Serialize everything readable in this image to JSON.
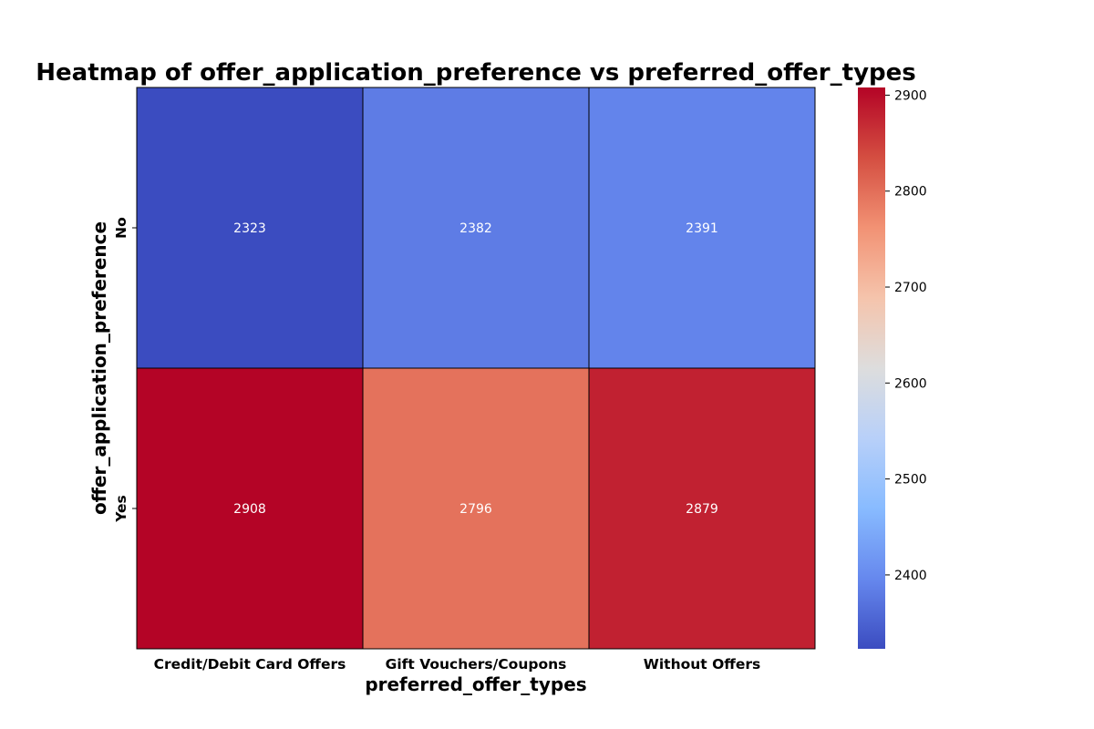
{
  "chart_data": {
    "type": "heatmap",
    "title": "Heatmap of offer_application_preference vs preferred_offer_types",
    "xlabel": "preferred_offer_types",
    "ylabel": "offer_application_preference",
    "x_categories": [
      "Credit/Debit Card Offers",
      "Gift Vouchers/Coupons",
      "Without Offers"
    ],
    "y_categories": [
      "No",
      "Yes"
    ],
    "values": [
      [
        2323,
        2382,
        2391
      ],
      [
        2908,
        2796,
        2879
      ]
    ],
    "colormap": "coolwarm",
    "colormap_stops": [
      "#3b4cc0",
      "#6688ee",
      "#88bbff",
      "#b8d0f9",
      "#dddddd",
      "#f5c4ac",
      "#f29274",
      "#d44e41",
      "#b40426"
    ],
    "vmin": 2323,
    "vmax": 2908,
    "cell_border_color": "#000000",
    "colorbar": {
      "ticks": [
        2400,
        2500,
        2600,
        2700,
        2800,
        2900
      ]
    }
  }
}
